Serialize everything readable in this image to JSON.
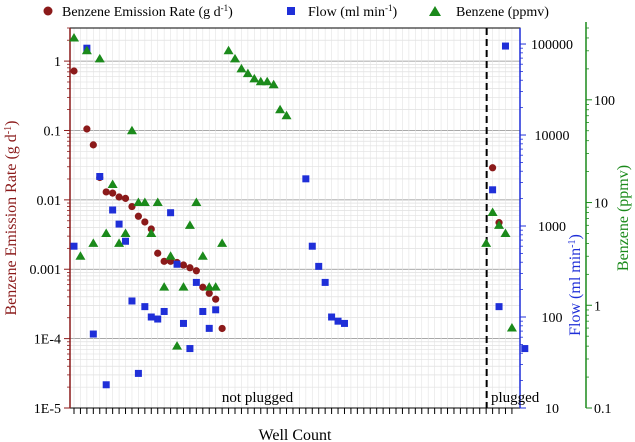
{
  "chart_data": {
    "type": "scatter",
    "xlabel": "Well Count",
    "x_minor_ticks": 73,
    "divider_at": 64,
    "regions": [
      {
        "label": "not plugged",
        "center": 28.5
      },
      {
        "label": "plugged",
        "center": 68.5
      }
    ],
    "axes": {
      "left": {
        "label": "Benzene Emission Rate (g d-1)",
        "label_main": "Benzene Emission Rate (g d",
        "label_sup": "-1",
        "label_end": ")",
        "scale": "log",
        "range": [
          1e-05,
          3
        ],
        "ticks": [
          1e-05,
          0.0001,
          0.001,
          0.01,
          0.1,
          1
        ],
        "tick_labels": [
          "1E-5",
          "1E-4",
          "0.001",
          "0.01",
          "0.1",
          "1"
        ],
        "color": "#8b1a1a"
      },
      "right1": {
        "label": "Flow (ml min-1)",
        "label_main": "Flow (ml min",
        "label_sup": "-1",
        "label_end": ")",
        "scale": "log",
        "range": [
          10,
          150000
        ],
        "ticks": [
          10,
          100,
          1000,
          10000,
          100000
        ],
        "tick_labels": [
          "10",
          "100",
          "1000",
          "10000",
          "100000"
        ],
        "color": "#1f2fd8"
      },
      "right2": {
        "label": "Benzene (ppmv)",
        "scale": "log",
        "range": [
          0.1,
          500
        ],
        "ticks": [
          0.1,
          1,
          10,
          100
        ],
        "tick_labels": [
          "0.1",
          "1",
          "10",
          "100"
        ],
        "color": "#1b8a1b"
      }
    },
    "series": [
      {
        "name": "Benzene Emission Rate (g d-1)",
        "legend_main": "Benzene Emission Rate (g d",
        "legend_sup": "-1",
        "legend_end": ")",
        "axis": "left",
        "marker": "circle",
        "color": "#8b1a1a",
        "points": [
          [
            0,
            0.72
          ],
          [
            2,
            0.105
          ],
          [
            3,
            0.062
          ],
          [
            4,
            0.021
          ],
          [
            5,
            0.013
          ],
          [
            6,
            0.0125
          ],
          [
            7,
            0.011
          ],
          [
            8,
            0.0105
          ],
          [
            9,
            0.008
          ],
          [
            10,
            0.0058
          ],
          [
            11,
            0.0048
          ],
          [
            12,
            0.0038
          ],
          [
            13,
            0.0017
          ],
          [
            14,
            0.0013
          ],
          [
            15,
            0.0013
          ],
          [
            16,
            0.00125
          ],
          [
            17,
            0.00115
          ],
          [
            18,
            0.00105
          ],
          [
            19,
            0.00095
          ],
          [
            20,
            0.00055
          ],
          [
            21,
            0.00045
          ],
          [
            22,
            0.00037
          ],
          [
            23,
            0.00014
          ],
          [
            65,
            0.029
          ],
          [
            66,
            0.0047
          ]
        ]
      },
      {
        "name": "Flow (ml min-1)",
        "legend_main": "Flow (ml min",
        "legend_sup": "-1",
        "legend_end": ")",
        "axis": "right1",
        "marker": "square",
        "color": "#1f2fd8",
        "points": [
          [
            0,
            600
          ],
          [
            2,
            90000
          ],
          [
            3,
            65
          ],
          [
            4,
            3500
          ],
          [
            5,
            18
          ],
          [
            6,
            1500
          ],
          [
            7,
            1050
          ],
          [
            8,
            680
          ],
          [
            9,
            150
          ],
          [
            10,
            24
          ],
          [
            11,
            130
          ],
          [
            12,
            100
          ],
          [
            13,
            95
          ],
          [
            14,
            115
          ],
          [
            15,
            1400
          ],
          [
            16,
            380
          ],
          [
            17,
            85
          ],
          [
            18,
            45
          ],
          [
            19,
            240
          ],
          [
            20,
            115
          ],
          [
            21,
            75
          ],
          [
            22,
            120
          ],
          [
            36,
            3300
          ],
          [
            37,
            600
          ],
          [
            38,
            360
          ],
          [
            39,
            240
          ],
          [
            40,
            100
          ],
          [
            41,
            90
          ],
          [
            42,
            85
          ],
          [
            65,
            2500
          ],
          [
            66,
            130
          ],
          [
            67,
            95000
          ],
          [
            70,
            45
          ]
        ]
      },
      {
        "name": "Benzene (ppmv)",
        "axis": "right2",
        "marker": "triangle",
        "color": "#1b8a1b",
        "points": [
          [
            0,
            400
          ],
          [
            1,
            3
          ],
          [
            2,
            300
          ],
          [
            3,
            4
          ],
          [
            4,
            250
          ],
          [
            5,
            5
          ],
          [
            6,
            15
          ],
          [
            7,
            4
          ],
          [
            8,
            5
          ],
          [
            9,
            50
          ],
          [
            10,
            10
          ],
          [
            11,
            10
          ],
          [
            12,
            5
          ],
          [
            13,
            10
          ],
          [
            14,
            1.5
          ],
          [
            15,
            3
          ],
          [
            16,
            0.4
          ],
          [
            17,
            1.5
          ],
          [
            18,
            6
          ],
          [
            19,
            10
          ],
          [
            20,
            3
          ],
          [
            21,
            1.5
          ],
          [
            22,
            1.5
          ],
          [
            23,
            4
          ],
          [
            24,
            300
          ],
          [
            25,
            250
          ],
          [
            26,
            200
          ],
          [
            27,
            180
          ],
          [
            28,
            160
          ],
          [
            29,
            150
          ],
          [
            30,
            150
          ],
          [
            31,
            140
          ],
          [
            32,
            80
          ],
          [
            33,
            70
          ],
          [
            64,
            4
          ],
          [
            65,
            8
          ],
          [
            66,
            6
          ],
          [
            67,
            5
          ],
          [
            68,
            0.6
          ]
        ]
      }
    ]
  }
}
